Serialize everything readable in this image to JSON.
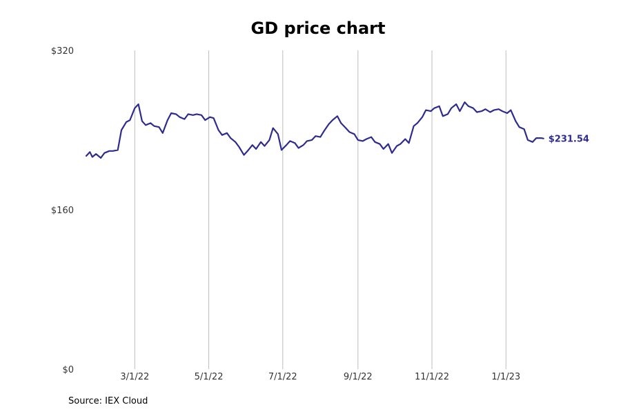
{
  "colors": {
    "line": "#2e2b8f",
    "grid": "#bdbdbd",
    "tick_text": "#333333"
  },
  "chart_data": {
    "type": "line",
    "title": "GD price chart",
    "xlabel": "",
    "ylabel": "",
    "source": "Source: IEX Cloud",
    "grid": "vertical",
    "legend": "none",
    "xlim": [
      "2022-01-20",
      "2023-03-05"
    ],
    "ylim": [
      0,
      320
    ],
    "x_ticks": [
      "2022-03-01",
      "2022-05-01",
      "2022-07-01",
      "2022-09-01",
      "2022-11-01",
      "2023-01-01"
    ],
    "x_tick_labels": [
      "3/1/22",
      "5/1/22",
      "7/1/22",
      "9/1/22",
      "11/1/22",
      "1/1/23"
    ],
    "y_ticks": [
      0,
      160,
      320
    ],
    "y_tick_labels": [
      "$0",
      "$160",
      "$320"
    ],
    "end_label": "$231.54",
    "series": [
      {
        "values": [
          [
            "2022-01-20",
            214
          ],
          [
            "2022-01-23",
            218
          ],
          [
            "2022-01-25",
            213
          ],
          [
            "2022-01-28",
            216
          ],
          [
            "2022-02-01",
            212
          ],
          [
            "2022-02-04",
            217
          ],
          [
            "2022-02-08",
            219
          ],
          [
            "2022-02-11",
            219
          ],
          [
            "2022-02-15",
            220
          ],
          [
            "2022-02-18",
            240
          ],
          [
            "2022-02-22",
            248
          ],
          [
            "2022-02-25",
            250
          ],
          [
            "2022-03-01",
            262
          ],
          [
            "2022-03-04",
            266
          ],
          [
            "2022-03-07",
            249
          ],
          [
            "2022-03-10",
            245
          ],
          [
            "2022-03-14",
            247
          ],
          [
            "2022-03-17",
            244
          ],
          [
            "2022-03-21",
            243
          ],
          [
            "2022-03-24",
            237
          ],
          [
            "2022-03-28",
            250
          ],
          [
            "2022-03-31",
            257
          ],
          [
            "2022-04-04",
            256
          ],
          [
            "2022-04-07",
            253
          ],
          [
            "2022-04-11",
            251
          ],
          [
            "2022-04-14",
            256
          ],
          [
            "2022-04-18",
            255
          ],
          [
            "2022-04-21",
            256
          ],
          [
            "2022-04-25",
            255
          ],
          [
            "2022-04-28",
            250
          ],
          [
            "2022-05-02",
            253
          ],
          [
            "2022-05-05",
            252
          ],
          [
            "2022-05-09",
            240
          ],
          [
            "2022-05-12",
            235
          ],
          [
            "2022-05-16",
            237
          ],
          [
            "2022-05-19",
            232
          ],
          [
            "2022-05-23",
            228
          ],
          [
            "2022-05-26",
            223
          ],
          [
            "2022-05-30",
            215
          ],
          [
            "2022-06-02",
            219
          ],
          [
            "2022-06-06",
            225
          ],
          [
            "2022-06-09",
            221
          ],
          [
            "2022-06-13",
            228
          ],
          [
            "2022-06-16",
            224
          ],
          [
            "2022-06-20",
            230
          ],
          [
            "2022-06-23",
            242
          ],
          [
            "2022-06-27",
            236
          ],
          [
            "2022-06-30",
            220
          ],
          [
            "2022-07-04",
            225
          ],
          [
            "2022-07-07",
            229
          ],
          [
            "2022-07-11",
            227
          ],
          [
            "2022-07-14",
            222
          ],
          [
            "2022-07-18",
            225
          ],
          [
            "2022-07-21",
            229
          ],
          [
            "2022-07-25",
            230
          ],
          [
            "2022-07-28",
            234
          ],
          [
            "2022-08-01",
            233
          ],
          [
            "2022-08-04",
            239
          ],
          [
            "2022-08-08",
            246
          ],
          [
            "2022-08-11",
            250
          ],
          [
            "2022-08-15",
            254
          ],
          [
            "2022-08-18",
            247
          ],
          [
            "2022-08-22",
            242
          ],
          [
            "2022-08-25",
            238
          ],
          [
            "2022-08-29",
            236
          ],
          [
            "2022-09-01",
            230
          ],
          [
            "2022-09-05",
            229
          ],
          [
            "2022-09-08",
            231
          ],
          [
            "2022-09-12",
            233
          ],
          [
            "2022-09-15",
            228
          ],
          [
            "2022-09-19",
            226
          ],
          [
            "2022-09-22",
            221
          ],
          [
            "2022-09-26",
            226
          ],
          [
            "2022-09-29",
            217
          ],
          [
            "2022-10-03",
            224
          ],
          [
            "2022-10-06",
            226
          ],
          [
            "2022-10-10",
            231
          ],
          [
            "2022-10-13",
            227
          ],
          [
            "2022-10-17",
            244
          ],
          [
            "2022-10-20",
            247
          ],
          [
            "2022-10-24",
            253
          ],
          [
            "2022-10-27",
            260
          ],
          [
            "2022-10-31",
            259
          ],
          [
            "2022-11-03",
            262
          ],
          [
            "2022-11-07",
            264
          ],
          [
            "2022-11-10",
            254
          ],
          [
            "2022-11-14",
            256
          ],
          [
            "2022-11-17",
            262
          ],
          [
            "2022-11-21",
            266
          ],
          [
            "2022-11-24",
            259
          ],
          [
            "2022-11-28",
            268
          ],
          [
            "2022-12-01",
            264
          ],
          [
            "2022-12-05",
            262
          ],
          [
            "2022-12-08",
            258
          ],
          [
            "2022-12-12",
            259
          ],
          [
            "2022-12-15",
            261
          ],
          [
            "2022-12-19",
            258
          ],
          [
            "2022-12-22",
            260
          ],
          [
            "2022-12-26",
            261
          ],
          [
            "2022-12-29",
            259
          ],
          [
            "2023-01-02",
            257
          ],
          [
            "2023-01-05",
            260
          ],
          [
            "2023-01-09",
            249
          ],
          [
            "2023-01-12",
            243
          ],
          [
            "2023-01-16",
            241
          ],
          [
            "2023-01-19",
            230
          ],
          [
            "2023-01-23",
            228
          ],
          [
            "2023-01-26",
            232
          ],
          [
            "2023-01-30",
            232
          ],
          [
            "2023-02-01",
            231.54
          ]
        ]
      }
    ]
  }
}
